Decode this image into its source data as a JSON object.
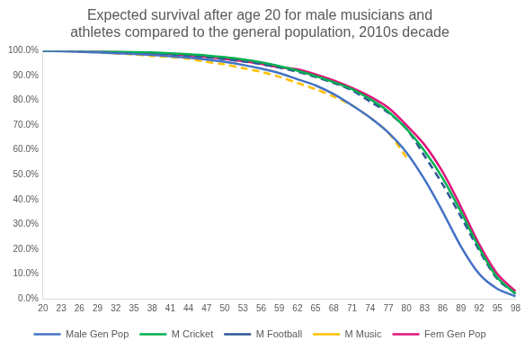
{
  "chart_data": {
    "type": "line",
    "title": "Expected survival after age 20 for male musicians and athletes compared to the general population, 2010s decade",
    "categories": [
      "20",
      "23",
      "26",
      "29",
      "32",
      "35",
      "38",
      "41",
      "44",
      "47",
      "50",
      "53",
      "56",
      "59",
      "62",
      "65",
      "68",
      "71",
      "74",
      "77",
      "80",
      "83",
      "86",
      "89",
      "92",
      "95",
      "98"
    ],
    "series": [
      {
        "name": "Male Gen Pop",
        "color": "#4472c4",
        "line_style": "solid",
        "values": [
          100,
          99.8,
          99.6,
          99.3,
          99.0,
          98.7,
          98.3,
          97.8,
          97.2,
          96.4,
          95.5,
          94.3,
          92.8,
          91.0,
          88.5,
          86.0,
          82.5,
          78.0,
          73.0,
          67.0,
          59.0,
          48.0,
          35.0,
          21.0,
          10.0,
          4.0,
          1.0
        ]
      },
      {
        "name": "M Cricket",
        "color": "#00b050",
        "line_style": "solid",
        "values": [
          100,
          100,
          99.9,
          99.8,
          99.7,
          99.5,
          99.3,
          99.0,
          98.6,
          98.1,
          97.4,
          96.5,
          95.3,
          93.8,
          92.0,
          89.8,
          87.3,
          84.5,
          80.5,
          75.5,
          68.5,
          59.5,
          48.5,
          35.0,
          20.5,
          8.5,
          2.0
        ]
      },
      {
        "name": "M Football",
        "color": "#2f5597",
        "line_style": "dashed",
        "values": [
          100,
          99.9,
          99.8,
          99.6,
          99.4,
          99.1,
          98.8,
          98.4,
          97.9,
          97.3,
          96.6,
          95.7,
          94.6,
          93.2,
          91.5,
          89.4,
          87.0,
          84.0,
          79.5,
          75.0,
          68.5,
          57.5,
          46.0,
          33.0,
          19.5,
          8.0,
          2.0
        ]
      },
      {
        "name": "M Music",
        "color": "#ffc000",
        "line_style": "dashed",
        "values": [
          100,
          99.9,
          99.7,
          99.4,
          99.0,
          98.5,
          97.9,
          97.5,
          96.8,
          95.5,
          94.5,
          93.0,
          91.5,
          89.5,
          87.0,
          84.5,
          81.5,
          78.0,
          73.0,
          67.0,
          57.0,
          null,
          null,
          null,
          null,
          null,
          null
        ]
      },
      {
        "name": "Fem Gen Pop",
        "color": "#e0147c",
        "line_style": "solid",
        "values": [
          100,
          99.9,
          99.8,
          99.7,
          99.5,
          99.3,
          99.0,
          98.6,
          98.1,
          97.5,
          96.7,
          95.8,
          94.7,
          93.3,
          92.5,
          90.5,
          88.0,
          85.0,
          81.5,
          77.0,
          70.0,
          62.0,
          51.0,
          37.0,
          22.0,
          10.0,
          3.0
        ]
      }
    ],
    "ylim": [
      0,
      100
    ],
    "yticks": [
      {
        "value": 0,
        "label": "0.0%"
      },
      {
        "value": 10,
        "label": "10.0%"
      },
      {
        "value": 20,
        "label": "20.0%"
      },
      {
        "value": 30,
        "label": "30.0%"
      },
      {
        "value": 40,
        "label": "40.0%"
      },
      {
        "value": 50,
        "label": "50.0%"
      },
      {
        "value": 60,
        "label": "60.0%"
      },
      {
        "value": 70,
        "label": "70.0%"
      },
      {
        "value": 80,
        "label": "80.0%"
      },
      {
        "value": 90,
        "label": "90.0%"
      },
      {
        "value": 100,
        "label": "100.0%"
      }
    ],
    "grid": false,
    "legend": "bottom"
  }
}
